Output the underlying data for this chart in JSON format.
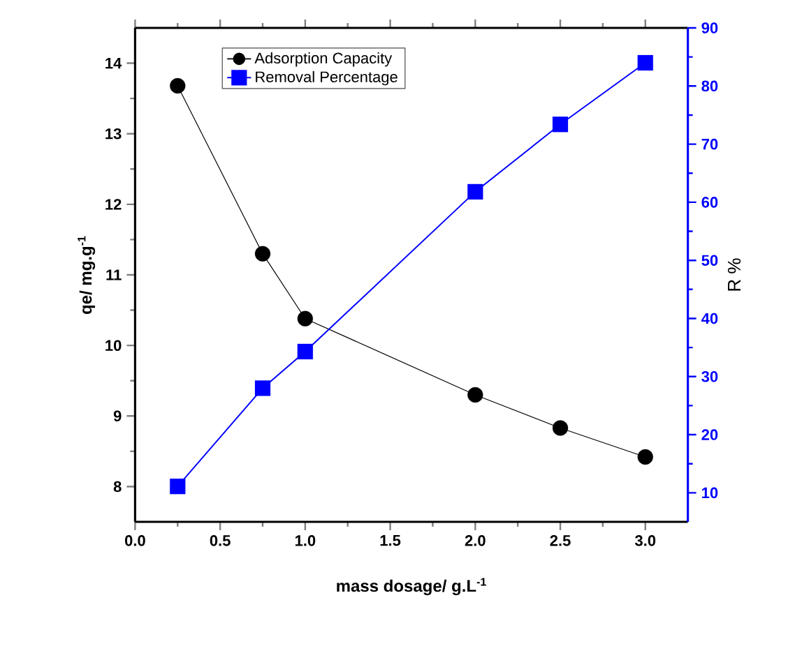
{
  "chart_data": {
    "type": "line",
    "x": [
      0.25,
      0.75,
      1.0,
      2.0,
      2.5,
      3.0
    ],
    "series": [
      {
        "name": "Adsorption Capacity",
        "color": "#000000",
        "values": [
          13.68,
          11.3,
          10.38,
          9.3,
          8.83,
          8.42
        ],
        "marker": "circle"
      },
      {
        "name": "Removal Percentage",
        "color": "#0000ff",
        "values": [
          11.1,
          28.0,
          34.3,
          61.8,
          73.4,
          84.0
        ],
        "marker": "square",
        "axis": "y2"
      }
    ],
    "xlabel": "mass dosage/ g.L$^{-1}$",
    "ylabel": "qe/ mg.g$^{-1}$",
    "y2label": "R %",
    "xlim": [
      0,
      3.25
    ],
    "xticks": [
      {
        "value": 0,
        "label": "0.0"
      },
      {
        "value": 0.5,
        "label": "0.5"
      },
      {
        "value": 1,
        "label": "1.0"
      },
      {
        "value": 1.5,
        "label": "1.5"
      },
      {
        "value": 2,
        "label": "2.0"
      },
      {
        "value": 2.5,
        "label": "2.5"
      },
      {
        "value": 3,
        "label": "3.0"
      }
    ],
    "ylim": [
      7.5,
      14.5
    ],
    "yticks": [
      8,
      9,
      10,
      11,
      12,
      13,
      14
    ],
    "y2lim": [
      5,
      90
    ],
    "y2ticks": [
      10,
      20,
      30,
      40,
      50,
      60,
      70,
      80,
      90
    ],
    "legend": "top left"
  }
}
